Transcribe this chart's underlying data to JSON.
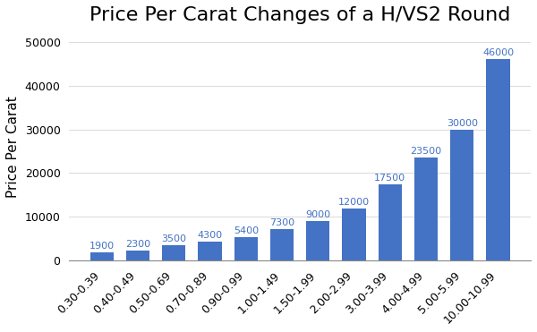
{
  "title": "Price Per Carat Changes of a H/VS2 Round",
  "ylabel": "Price Per Carat",
  "categories": [
    "0.30-0.39",
    "0.40-0.49",
    "0.50-0.69",
    "0.70-0.89",
    "0.90-0.99",
    "1.00-1.49",
    "1.50-1.99",
    "2.00-2.99",
    "3.00-3.99",
    "4.00-4.99",
    "5.00-5.99",
    "10.00-10.99"
  ],
  "values": [
    1900,
    2300,
    3500,
    4300,
    5400,
    7300,
    9000,
    12000,
    17500,
    23500,
    30000,
    46000
  ],
  "bar_color": "#4472c4",
  "label_color": "#4472c4",
  "background_color": "#ffffff",
  "grid_color": "#dddddd",
  "ylim": [
    0,
    52000
  ],
  "yticks": [
    0,
    10000,
    20000,
    30000,
    40000,
    50000
  ],
  "title_fontsize": 16,
  "label_fontsize": 11,
  "tick_fontsize": 9,
  "value_fontsize": 8
}
